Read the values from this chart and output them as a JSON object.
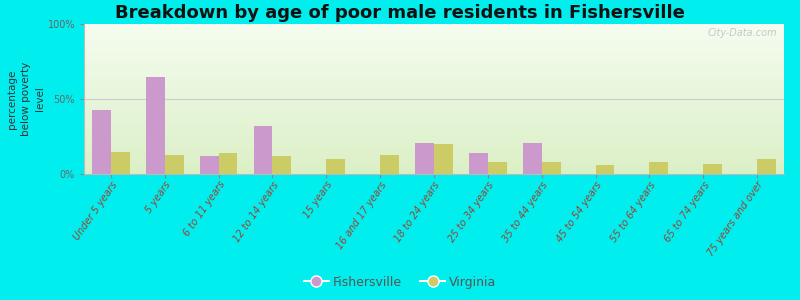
{
  "title": "Breakdown by age of poor male residents in Fishersville",
  "ylabel": "percentage\nbelow poverty\nlevel",
  "categories": [
    "Under 5 years",
    "5 years",
    "6 to 11 years",
    "12 to 14 years",
    "15 years",
    "16 and 17 years",
    "18 to 24 years",
    "25 to 34 years",
    "35 to 44 years",
    "45 to 54 years",
    "55 to 64 years",
    "65 to 74 years",
    "75 years and over"
  ],
  "fishersville": [
    43,
    65,
    12,
    32,
    0,
    0,
    21,
    14,
    21,
    0,
    0,
    0,
    0
  ],
  "virginia": [
    15,
    13,
    14,
    12,
    10,
    13,
    20,
    8,
    8,
    6,
    8,
    7,
    10
  ],
  "fishersville_color": "#cc99cc",
  "virginia_color": "#cccc66",
  "bar_width": 0.35,
  "ylim": [
    0,
    100
  ],
  "yticks": [
    0,
    50,
    100
  ],
  "ytick_labels": [
    "0%",
    "50%",
    "100%"
  ],
  "bg_top": "#f8fdf0",
  "bg_bottom": "#dff0cc",
  "outer_background": "#00eeee",
  "title_fontsize": 13,
  "axis_label_fontsize": 7.5,
  "tick_label_fontsize": 7,
  "legend_fontsize": 9,
  "watermark": "City-Data.com"
}
